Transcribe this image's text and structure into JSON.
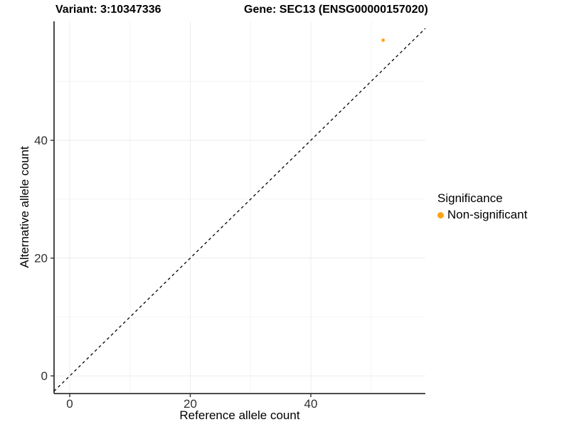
{
  "header": {
    "variant_title": "Variant: 3:10347336",
    "gene_title": "Gene: SEC13 (ENSG00000157020)"
  },
  "legend": {
    "title": "Significance",
    "items": [
      {
        "label": "Non-significant",
        "color": "#FFA319"
      }
    ]
  },
  "chart_data": {
    "type": "scatter",
    "title": "Variant: 3:10347336 — Gene: SEC13 (ENSG00000157020)",
    "xlabel": "Reference allele count",
    "ylabel": "Alternative allele count",
    "xlim": [
      -2.6,
      59.0
    ],
    "ylim": [
      -3.0,
      60.2
    ],
    "x_ticks": [
      0,
      20,
      40
    ],
    "y_ticks": [
      0,
      20,
      40
    ],
    "x_minor_ticks": [
      10,
      30,
      50
    ],
    "y_minor_ticks": [
      10,
      30,
      50
    ],
    "grid": true,
    "legend_position": "right",
    "series": [
      {
        "name": "Non-significant",
        "color": "#FFA319",
        "points": [
          {
            "x": 52,
            "y": 57
          }
        ]
      }
    ],
    "identity_line": {
      "slope": 1,
      "intercept": 0,
      "style": "dashed",
      "color": "#000000"
    },
    "colors": {
      "axis_line": "#333333",
      "tick_text": "#303030",
      "grid_major": "#ececec",
      "grid_minor": "#f4f4f4",
      "point_non_significant": "#FFA319"
    }
  }
}
